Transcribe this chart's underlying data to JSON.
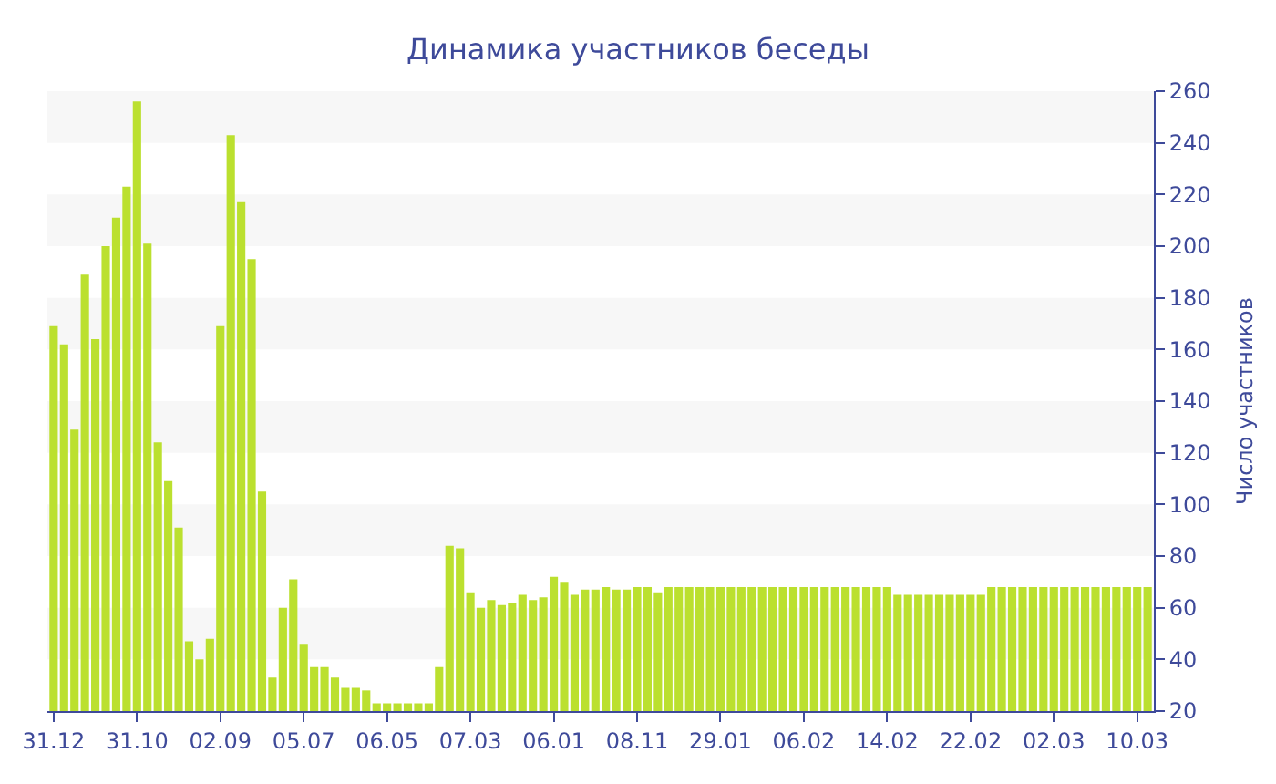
{
  "chart_data": {
    "type": "bar",
    "title": "Динамика участников беседы",
    "ylabel": "Число участников",
    "categories": [
      "31.12",
      null,
      null,
      null,
      null,
      null,
      null,
      null,
      "31.10",
      null,
      null,
      null,
      null,
      null,
      null,
      null,
      "02.09",
      null,
      null,
      null,
      null,
      null,
      null,
      null,
      "05.07",
      null,
      null,
      null,
      null,
      null,
      null,
      null,
      "06.05",
      null,
      null,
      null,
      null,
      null,
      null,
      null,
      "07.03",
      null,
      null,
      null,
      null,
      null,
      null,
      null,
      "06.01",
      null,
      null,
      null,
      null,
      null,
      null,
      null,
      "08.11",
      null,
      null,
      null,
      null,
      null,
      null,
      null,
      "29.01",
      null,
      null,
      null,
      null,
      null,
      null,
      null,
      "06.02",
      null,
      null,
      null,
      null,
      null,
      null,
      null,
      "14.02",
      null,
      null,
      null,
      null,
      null,
      null,
      null,
      "22.02",
      null,
      null,
      null,
      null,
      null,
      null,
      null,
      "02.03",
      null,
      null,
      null,
      null,
      null,
      null,
      null,
      "10.03",
      null
    ],
    "values": [
      169,
      162,
      129,
      189,
      164,
      200,
      211,
      223,
      256,
      201,
      124,
      109,
      91,
      47,
      40,
      48,
      169,
      243,
      217,
      195,
      105,
      33,
      60,
      71,
      46,
      37,
      37,
      33,
      29,
      29,
      28,
      23,
      23,
      23,
      23,
      23,
      23,
      37,
      84,
      83,
      66,
      60,
      63,
      61,
      62,
      65,
      63,
      64,
      72,
      70,
      65,
      67,
      67,
      68,
      67,
      67,
      68,
      68,
      66,
      68,
      68,
      68,
      68,
      68,
      68,
      68,
      68,
      68,
      68,
      68,
      68,
      68,
      68,
      68,
      68,
      68,
      68,
      68,
      68,
      68,
      68,
      65,
      65,
      65,
      65,
      65,
      65,
      65,
      65,
      65,
      68,
      68,
      68,
      68,
      68,
      68,
      68,
      68,
      68,
      68,
      68,
      68,
      68,
      68,
      68,
      68
    ],
    "color": "#bbe02f",
    "ylim": [
      20,
      260
    ],
    "yticks": [
      20,
      40,
      60,
      80,
      100,
      120,
      140,
      160,
      180,
      200,
      220,
      240,
      260
    ],
    "grid": false,
    "bands": [
      {
        "axis": "y",
        "from": 40,
        "to": 60,
        "color": "#f7f7f7"
      },
      {
        "axis": "y",
        "from": 80,
        "to": 100,
        "color": "#f7f7f7"
      },
      {
        "axis": "y",
        "from": 120,
        "to": 140,
        "color": "#f7f7f7"
      },
      {
        "axis": "y",
        "from": 160,
        "to": 180,
        "color": "#f7f7f7"
      },
      {
        "axis": "y",
        "from": 200,
        "to": 220,
        "color": "#f7f7f7"
      },
      {
        "axis": "y",
        "from": 240,
        "to": 260,
        "color": "#f7f7f7"
      }
    ]
  }
}
